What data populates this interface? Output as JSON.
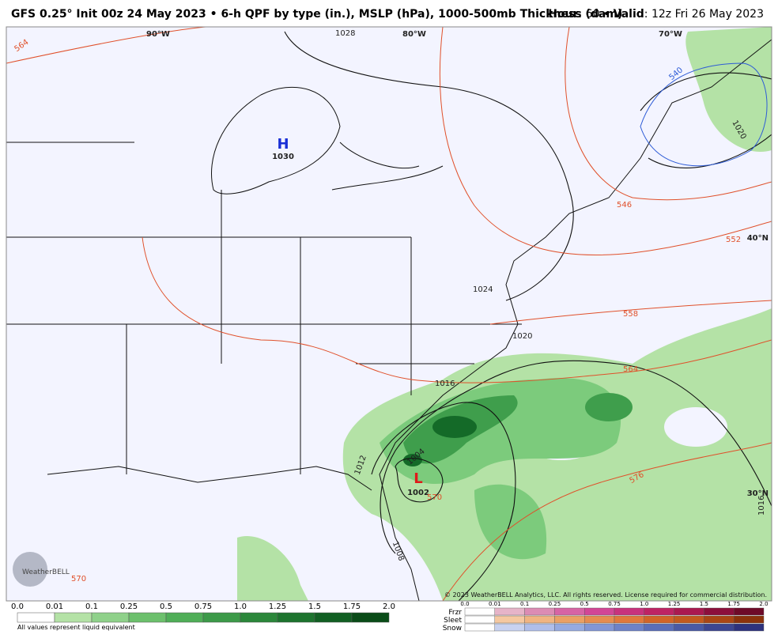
{
  "header": {
    "title": "GFS 0.25° Init 00z 24 May 2023 • 6-h QPF by type (in.), MSLP (hPa), 1000-500mb Thickness (dam)",
    "hour_label": "Hour",
    "hour": "60",
    "valid_label": "Valid",
    "valid": "12z Fri 26 May 2023"
  },
  "map": {
    "longitudes": [
      "90°W",
      "80°W",
      "70°W"
    ],
    "latitudes": [
      "40°N",
      "30°N"
    ],
    "high": {
      "symbol": "H",
      "pressure": "1030"
    },
    "low": {
      "symbol": "L",
      "pressure": "1002"
    },
    "isobar_labels": [
      "1028",
      "1024",
      "1020",
      "1016",
      "1012",
      "1008",
      "1004",
      "1020",
      "1016"
    ],
    "thickness_labels": [
      "564",
      "570",
      "576",
      "558",
      "552",
      "546",
      "540",
      "564",
      "570"
    ],
    "logo": "WeatherBELL"
  },
  "legend": {
    "levels": [
      "0.0",
      "0.01",
      "0.1",
      "0.25",
      "0.5",
      "0.75",
      "1.0",
      "1.25",
      "1.5",
      "1.75",
      "2.0"
    ],
    "note": "All values represent liquid equivalent"
  },
  "ptype_legend": {
    "rows": [
      "Frzr",
      "Sleet",
      "Snow"
    ],
    "levels": [
      "0.0",
      "0.01",
      "0.1",
      "0.25",
      "0.5",
      "0.75",
      "1.0",
      "1.25",
      "1.5",
      "1.75",
      "2.0"
    ]
  },
  "copyright": "© 2023 WeatherBELL Analytics, LLC. All rights reserved. License required for commercial distribution."
}
